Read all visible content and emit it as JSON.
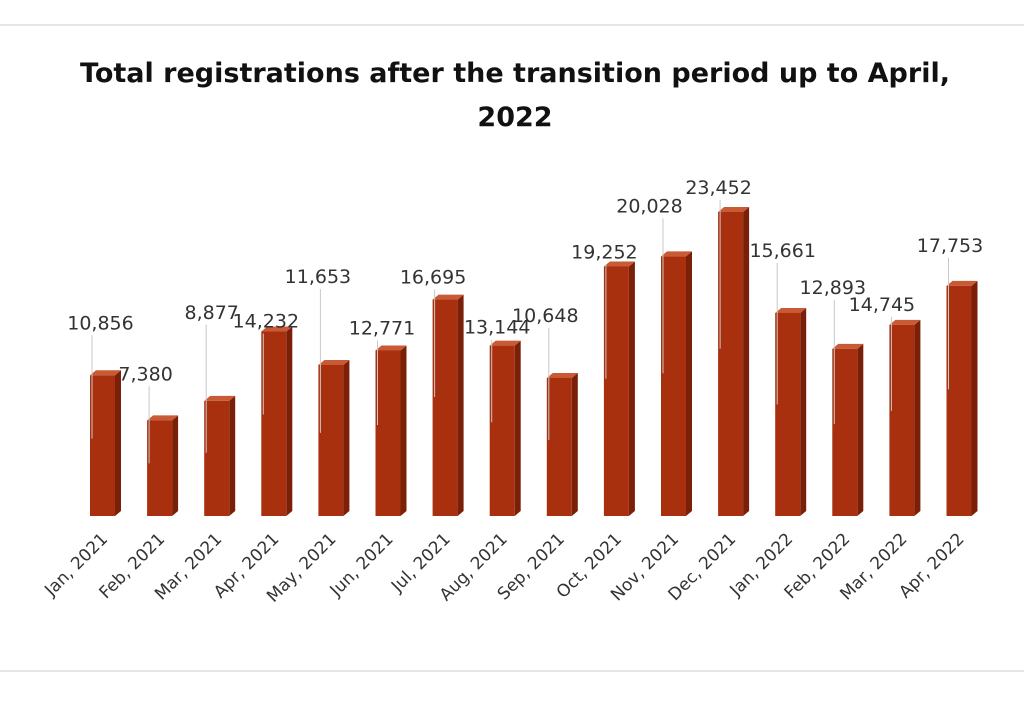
{
  "chart_data": {
    "type": "bar",
    "title": "Total registrations after the transition period up to April, 2022",
    "xlabel": "",
    "ylabel": "",
    "ylim": [
      0,
      23452
    ],
    "grid": false,
    "legend": "none",
    "bar_style": "3d",
    "categories": [
      "Jan, 2021",
      "Feb, 2021",
      "Mar, 2021",
      "Apr, 2021",
      "May, 2021",
      "Jun, 2021",
      "Jul, 2021",
      "Aug, 2021",
      "Sep, 2021",
      "Oct, 2021",
      "Nov, 2021",
      "Dec, 2021",
      "Jan, 2022",
      "Feb, 2022",
      "Mar, 2022",
      "Apr, 2022"
    ],
    "values": [
      10856,
      7380,
      8877,
      14232,
      11653,
      12771,
      16695,
      13144,
      10648,
      19252,
      20028,
      23452,
      15661,
      12893,
      14745,
      17753
    ],
    "data_labels": [
      "10,856",
      "7,380",
      "8,877",
      "14,232",
      "11,653",
      "12,771",
      "16,695",
      "13,144",
      "10,648",
      "19,252",
      "20,028",
      "23,452",
      "15,661",
      "12,893",
      "14,745",
      "17,753"
    ]
  },
  "colors": {
    "bar_front": "#a8300f",
    "bar_side": "#7a2008",
    "bar_top": "#c85a36",
    "leader_line": "#c8c8c8",
    "text": "#333333"
  }
}
